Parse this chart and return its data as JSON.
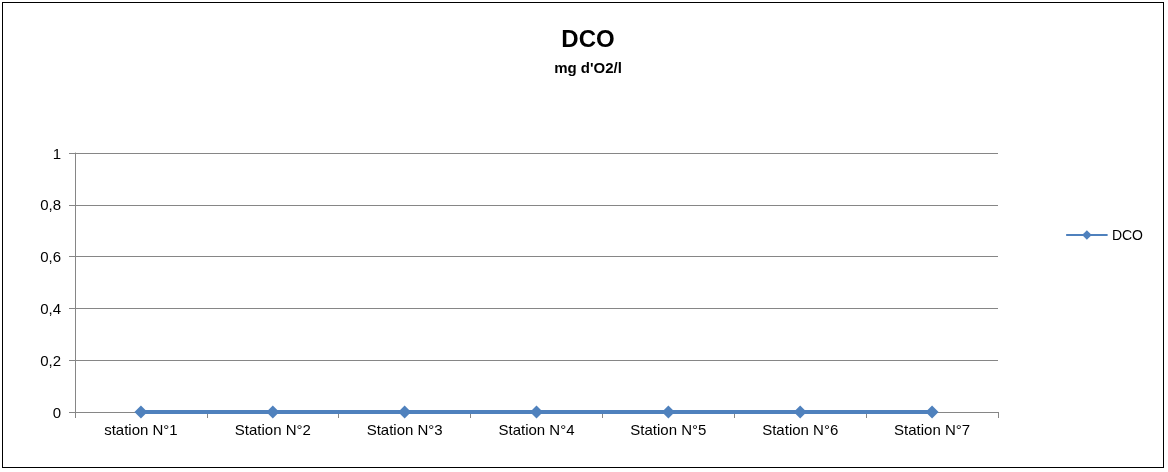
{
  "chart_data": {
    "type": "line",
    "title": "DCO",
    "subtitle": "mg d'O2/l",
    "categories": [
      "station N°1",
      "Station N°2",
      "Station N°3",
      "Station N°4",
      "Station N°5",
      "Station N°6",
      "Station N°7"
    ],
    "series": [
      {
        "name": "DCO",
        "color": "#4f81bd",
        "values": [
          0,
          0,
          0,
          0,
          0,
          0,
          0
        ]
      }
    ],
    "ylim": [
      0,
      1
    ],
    "yticks": [
      0,
      {
        "value": 0.2,
        "label": "0,2"
      },
      {
        "value": 0.4,
        "label": "0,4"
      },
      {
        "value": 0.6,
        "label": "0,6"
      },
      {
        "value": 0.8,
        "label": "0,8"
      },
      1
    ],
    "grid": "y",
    "legend": "right",
    "marker": "diamond",
    "line_style": "solid"
  }
}
